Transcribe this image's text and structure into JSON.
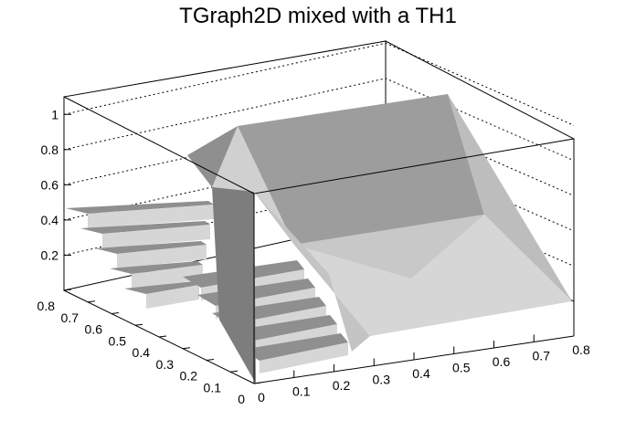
{
  "chart_data": {
    "type": "surface3d",
    "title": "TGraph2D mixed with a TH1",
    "xlabel": "",
    "ylabel": "",
    "zlabel": "",
    "xlim": [
      0,
      0.8
    ],
    "ylim": [
      0,
      0.8
    ],
    "zlim": [
      0,
      1.1
    ],
    "x_ticks": [
      "0",
      "0.1",
      "0.2",
      "0.3",
      "0.4",
      "0.5",
      "0.6",
      "0.7",
      "0.8"
    ],
    "y_ticks": [
      "0",
      "0.1",
      "0.2",
      "0.3",
      "0.4",
      "0.5",
      "0.6",
      "0.7",
      "0.8"
    ],
    "z_ticks": [
      "0.2",
      "0.4",
      "0.6",
      "0.8",
      "1"
    ],
    "grid": true,
    "colors": {
      "face_light": "#d6d6d6",
      "face_mid": "#bdbdbd",
      "face_dark": "#8f8f8f",
      "frame": "#000000"
    },
    "th1_steps": [
      {
        "x": 0.0,
        "z": 0.48
      },
      {
        "x": 0.1,
        "z": 0.4
      },
      {
        "x": 0.2,
        "z": 0.32
      },
      {
        "x": 0.3,
        "z": 0.24
      },
      {
        "x": 0.4,
        "z": 0.16
      }
    ],
    "graph2d_peak": {
      "x": 0.8,
      "y": 0.8,
      "z": 1.05
    }
  }
}
